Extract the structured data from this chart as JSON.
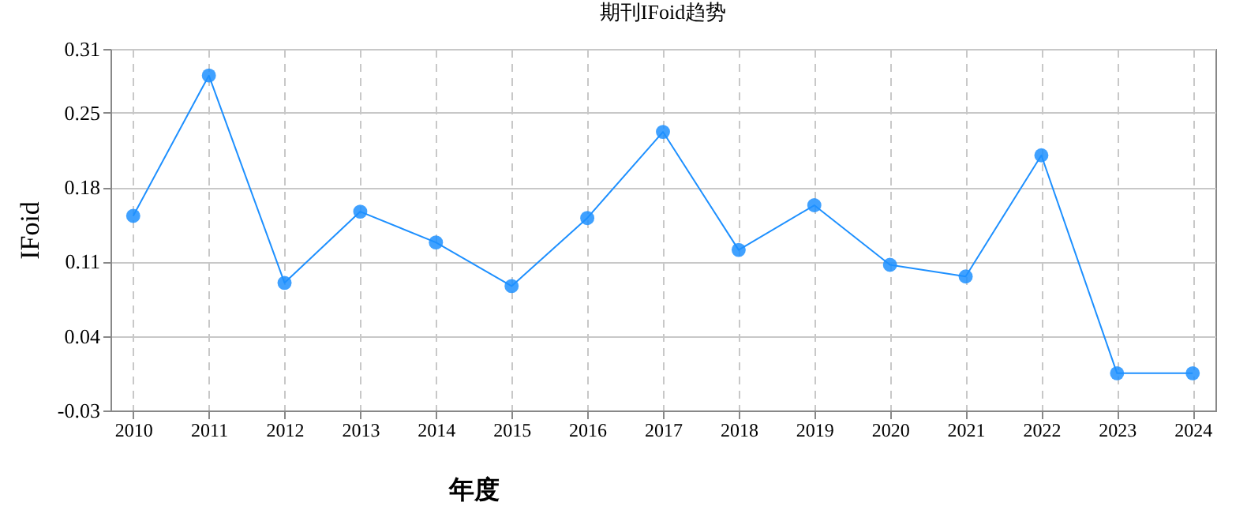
{
  "chart_data": {
    "type": "line",
    "title": "期刊IFoid趋势",
    "xlabel": "年度",
    "ylabel": "IFoid",
    "categories": [
      "2010",
      "2011",
      "2012",
      "2013",
      "2014",
      "2015",
      "2016",
      "2017",
      "2018",
      "2019",
      "2020",
      "2021",
      "2022",
      "2023",
      "2024"
    ],
    "series": [
      {
        "color": "#1e90ff",
        "values": [
          0.153,
          0.285,
          0.09,
          0.157,
          0.128,
          0.087,
          0.151,
          0.232,
          0.121,
          0.163,
          0.107,
          0.096,
          0.21,
          0.005,
          0.005
        ]
      }
    ],
    "ylim": [
      -0.03,
      0.31
    ],
    "yticks": [
      -0.03,
      0.04,
      0.11,
      0.18,
      0.25,
      0.31
    ],
    "grid": true,
    "marker": "circle",
    "line_style": "solid"
  }
}
